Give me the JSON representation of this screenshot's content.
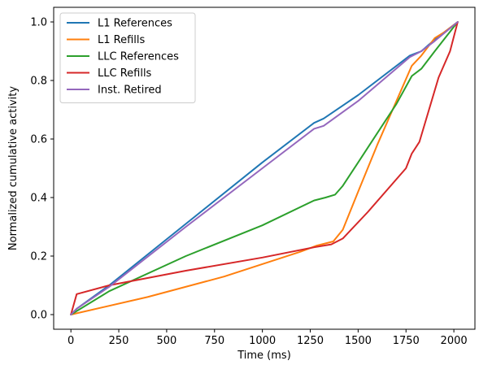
{
  "chart_data": {
    "type": "line",
    "title": "",
    "xlabel": "Time (ms)",
    "ylabel": "Normalized cumulative activity",
    "xlim": [
      -90,
      2110
    ],
    "ylim": [
      -0.05,
      1.05
    ],
    "xticks": [
      0,
      250,
      500,
      750,
      1000,
      1250,
      1500,
      1750,
      2000
    ],
    "xtick_labels": [
      "0",
      "250",
      "500",
      "750",
      "1000",
      "1250",
      "1500",
      "1750",
      "2000"
    ],
    "yticks": [
      0.0,
      0.2,
      0.4,
      0.6,
      0.8,
      1.0
    ],
    "ytick_labels": [
      "0.0",
      "0.2",
      "0.4",
      "0.6",
      "0.8",
      "1.0"
    ],
    "grid": false,
    "legend_position": "top-left",
    "series": [
      {
        "name": "L1 References",
        "color": "#1f77b4",
        "points": [
          [
            0,
            0.0
          ],
          [
            30,
            0.02
          ],
          [
            200,
            0.1
          ],
          [
            600,
            0.31
          ],
          [
            1000,
            0.52
          ],
          [
            1270,
            0.655
          ],
          [
            1320,
            0.67
          ],
          [
            1500,
            0.75
          ],
          [
            1770,
            0.885
          ],
          [
            1830,
            0.9
          ],
          [
            1900,
            0.94
          ],
          [
            2020,
            1.0
          ]
        ]
      },
      {
        "name": "L1 Refills",
        "color": "#ff7f0e",
        "points": [
          [
            0,
            0.0
          ],
          [
            400,
            0.06
          ],
          [
            800,
            0.13
          ],
          [
            1200,
            0.215
          ],
          [
            1280,
            0.235
          ],
          [
            1370,
            0.25
          ],
          [
            1420,
            0.29
          ],
          [
            1500,
            0.42
          ],
          [
            1600,
            0.58
          ],
          [
            1700,
            0.73
          ],
          [
            1780,
            0.85
          ],
          [
            1830,
            0.885
          ],
          [
            1900,
            0.945
          ],
          [
            1950,
            0.965
          ],
          [
            2020,
            1.0
          ]
        ]
      },
      {
        "name": "LLC References",
        "color": "#2ca02c",
        "points": [
          [
            0,
            0.0
          ],
          [
            200,
            0.08
          ],
          [
            600,
            0.2
          ],
          [
            1000,
            0.305
          ],
          [
            1270,
            0.39
          ],
          [
            1330,
            0.4
          ],
          [
            1380,
            0.41
          ],
          [
            1420,
            0.44
          ],
          [
            1500,
            0.52
          ],
          [
            1600,
            0.62
          ],
          [
            1700,
            0.72
          ],
          [
            1780,
            0.815
          ],
          [
            1830,
            0.84
          ],
          [
            1900,
            0.9
          ],
          [
            2020,
            1.0
          ]
        ]
      },
      {
        "name": "LLC Refills",
        "color": "#d62728",
        "points": [
          [
            0,
            0.0
          ],
          [
            30,
            0.07
          ],
          [
            200,
            0.1
          ],
          [
            600,
            0.15
          ],
          [
            1000,
            0.195
          ],
          [
            1270,
            0.23
          ],
          [
            1360,
            0.24
          ],
          [
            1420,
            0.26
          ],
          [
            1550,
            0.35
          ],
          [
            1750,
            0.5
          ],
          [
            1780,
            0.55
          ],
          [
            1820,
            0.59
          ],
          [
            1870,
            0.7
          ],
          [
            1920,
            0.81
          ],
          [
            1980,
            0.9
          ],
          [
            2020,
            1.0
          ]
        ]
      },
      {
        "name": "Inst. Retired",
        "color": "#9467bd",
        "points": [
          [
            0,
            0.0
          ],
          [
            30,
            0.02
          ],
          [
            200,
            0.095
          ],
          [
            600,
            0.3
          ],
          [
            1000,
            0.5
          ],
          [
            1270,
            0.635
          ],
          [
            1320,
            0.645
          ],
          [
            1500,
            0.73
          ],
          [
            1770,
            0.88
          ],
          [
            1830,
            0.9
          ],
          [
            1900,
            0.935
          ],
          [
            2020,
            1.0
          ]
        ]
      }
    ]
  }
}
